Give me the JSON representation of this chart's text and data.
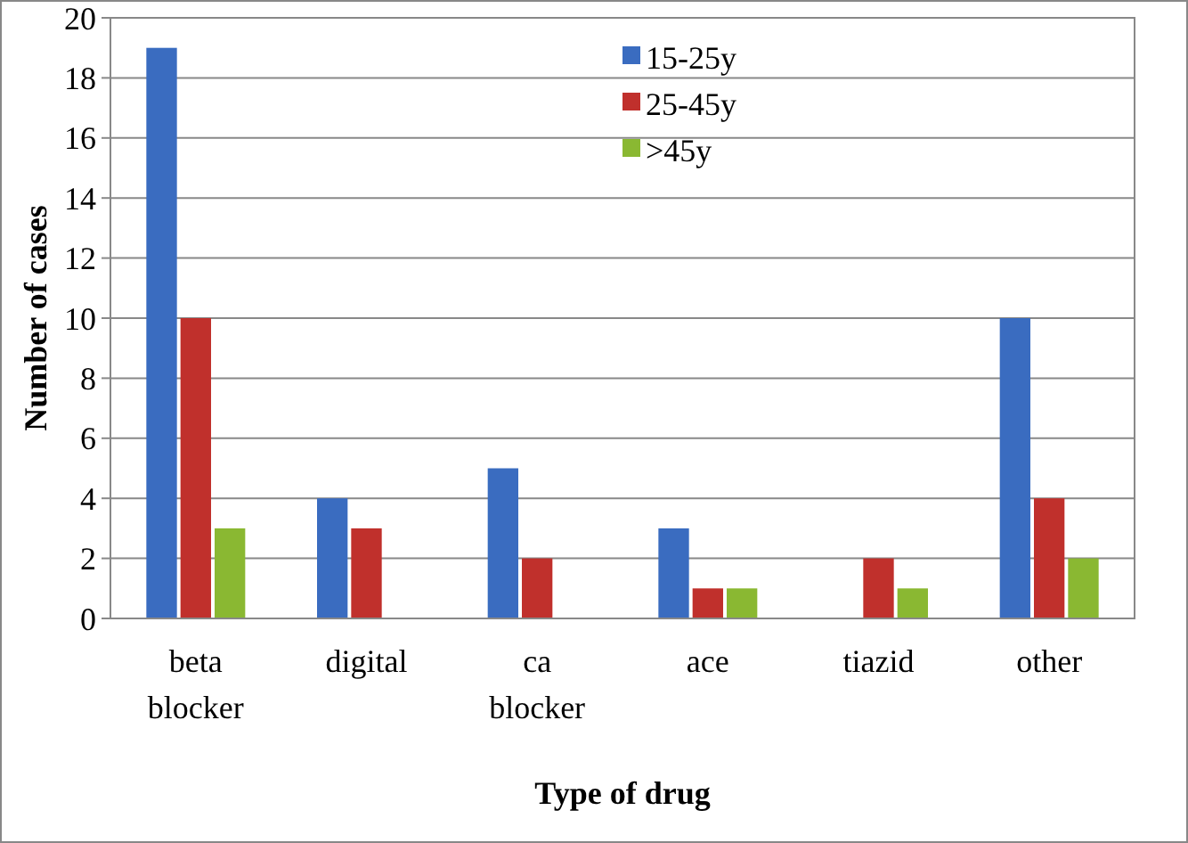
{
  "chart_data": {
    "type": "bar",
    "xlabel": "Type of drug",
    "ylabel": "Number of cases",
    "categories": [
      "beta blocker",
      "digital",
      "ca blocker",
      "ace",
      "tiazid",
      "other"
    ],
    "series": [
      {
        "name": "15-25y",
        "color": "#3a6cc0",
        "values": [
          19,
          4,
          5,
          3,
          0,
          10
        ]
      },
      {
        "name": "25-45y",
        "color": "#c0302c",
        "values": [
          10,
          3,
          2,
          1,
          2,
          4
        ]
      },
      {
        "name": ">45y",
        "color": "#8ab832",
        "values": [
          3,
          0,
          0,
          1,
          1,
          2
        ]
      }
    ],
    "ylim": [
      0,
      20
    ],
    "yticks": [
      0,
      2,
      4,
      6,
      8,
      10,
      12,
      14,
      16,
      18,
      20
    ],
    "grid": "y",
    "legend": "top"
  }
}
